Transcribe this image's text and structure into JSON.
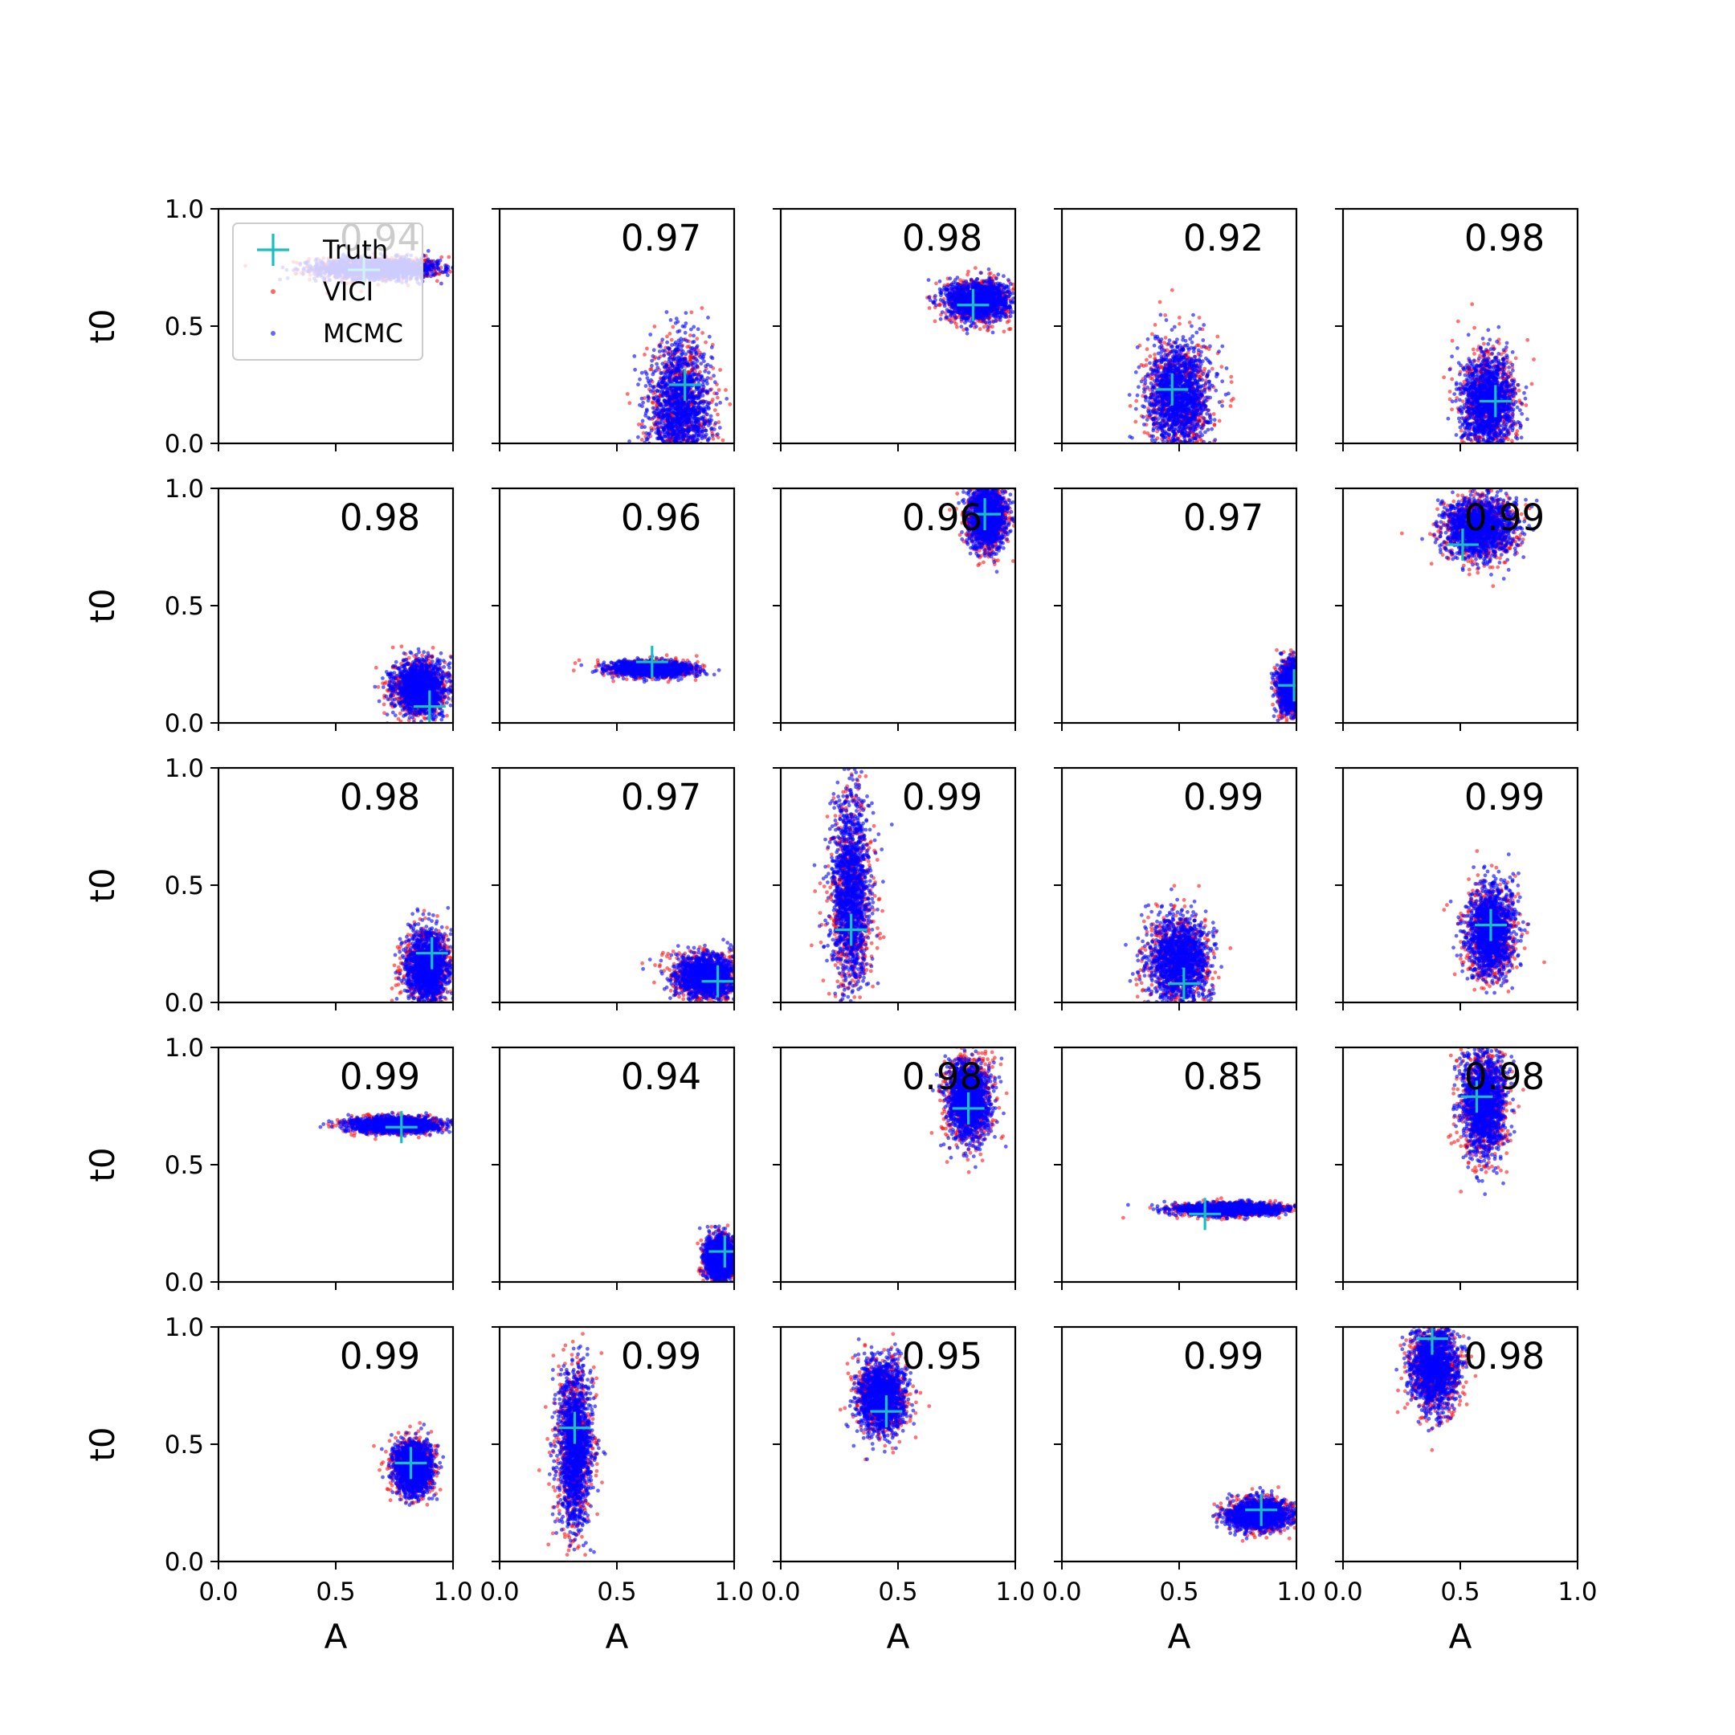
{
  "figure": {
    "xlabel": "A",
    "ylabel": "t0",
    "xticks": [
      "0.0",
      "0.5",
      "1.0"
    ],
    "yticks": [
      "0.0",
      "0.5",
      "1.0"
    ],
    "xlim": [
      0,
      1
    ],
    "ylim": [
      0,
      1
    ]
  },
  "legend": {
    "placement": "top-left of first panel",
    "entries": [
      {
        "label": "Truth",
        "marker": "plus",
        "color": "#17bfbf"
      },
      {
        "label": "VICI",
        "marker": "dot",
        "color": "#ff0000"
      },
      {
        "label": "MCMC",
        "marker": "dot",
        "color": "#0000ff"
      }
    ]
  },
  "colors": {
    "truth": "#17bfbf",
    "vici": "#ff0000",
    "mcmc": "#0000ff"
  },
  "chart_data": {
    "type": "scatter",
    "grid": false,
    "rows": 5,
    "cols": 5,
    "panels": [
      {
        "overlap": "0.94",
        "truth": [
          0.62,
          0.74
        ],
        "vici": {
          "cx": 0.68,
          "cy": 0.745,
          "sx": 0.14,
          "sy": 0.025
        },
        "mcmc": {
          "cx": 0.68,
          "cy": 0.745,
          "sx": 0.13,
          "sy": 0.022
        }
      },
      {
        "overlap": "0.97",
        "truth": [
          0.79,
          0.25
        ],
        "vici": {
          "cx": 0.77,
          "cy": 0.14,
          "sx": 0.07,
          "sy": 0.15
        },
        "mcmc": {
          "cx": 0.77,
          "cy": 0.14,
          "sx": 0.065,
          "sy": 0.14
        }
      },
      {
        "overlap": "0.98",
        "truth": [
          0.82,
          0.59
        ],
        "vici": {
          "cx": 0.84,
          "cy": 0.61,
          "sx": 0.07,
          "sy": 0.045
        },
        "mcmc": {
          "cx": 0.84,
          "cy": 0.61,
          "sx": 0.065,
          "sy": 0.04
        }
      },
      {
        "overlap": "0.92",
        "truth": [
          0.47,
          0.23
        ],
        "vici": {
          "cx": 0.5,
          "cy": 0.2,
          "sx": 0.07,
          "sy": 0.12
        },
        "mcmc": {
          "cx": 0.5,
          "cy": 0.2,
          "sx": 0.065,
          "sy": 0.11
        }
      },
      {
        "overlap": "0.98",
        "truth": [
          0.65,
          0.18
        ],
        "vici": {
          "cx": 0.62,
          "cy": 0.17,
          "sx": 0.06,
          "sy": 0.11
        },
        "mcmc": {
          "cx": 0.62,
          "cy": 0.17,
          "sx": 0.055,
          "sy": 0.1
        }
      },
      {
        "overlap": "0.98",
        "truth": [
          0.9,
          0.07
        ],
        "vici": {
          "cx": 0.86,
          "cy": 0.15,
          "sx": 0.06,
          "sy": 0.06
        },
        "mcmc": {
          "cx": 0.86,
          "cy": 0.15,
          "sx": 0.055,
          "sy": 0.055
        }
      },
      {
        "overlap": "0.96",
        "truth": [
          0.65,
          0.26
        ],
        "vici": {
          "cx": 0.65,
          "cy": 0.23,
          "sx": 0.09,
          "sy": 0.018
        },
        "mcmc": {
          "cx": 0.65,
          "cy": 0.23,
          "sx": 0.085,
          "sy": 0.016
        }
      },
      {
        "overlap": "0.96",
        "truth": [
          0.87,
          0.89
        ],
        "vici": {
          "cx": 0.88,
          "cy": 0.88,
          "sx": 0.045,
          "sy": 0.07
        },
        "mcmc": {
          "cx": 0.88,
          "cy": 0.88,
          "sx": 0.04,
          "sy": 0.065
        }
      },
      {
        "overlap": "0.97",
        "truth": [
          0.99,
          0.16
        ],
        "vici": {
          "cx": 0.98,
          "cy": 0.15,
          "sx": 0.03,
          "sy": 0.06
        },
        "mcmc": {
          "cx": 0.98,
          "cy": 0.15,
          "sx": 0.028,
          "sy": 0.055
        }
      },
      {
        "overlap": "0.99",
        "truth": [
          0.51,
          0.76
        ],
        "vici": {
          "cx": 0.58,
          "cy": 0.83,
          "sx": 0.08,
          "sy": 0.07
        },
        "mcmc": {
          "cx": 0.58,
          "cy": 0.83,
          "sx": 0.075,
          "sy": 0.065
        }
      },
      {
        "overlap": "0.98",
        "truth": [
          0.91,
          0.21
        ],
        "vici": {
          "cx": 0.89,
          "cy": 0.15,
          "sx": 0.05,
          "sy": 0.08
        },
        "mcmc": {
          "cx": 0.89,
          "cy": 0.15,
          "sx": 0.045,
          "sy": 0.075
        }
      },
      {
        "overlap": "0.97",
        "truth": [
          0.93,
          0.09
        ],
        "vici": {
          "cx": 0.88,
          "cy": 0.11,
          "sx": 0.07,
          "sy": 0.05
        },
        "mcmc": {
          "cx": 0.88,
          "cy": 0.11,
          "sx": 0.065,
          "sy": 0.045
        }
      },
      {
        "overlap": "0.99",
        "truth": [
          0.3,
          0.31
        ],
        "vici": {
          "cx": 0.3,
          "cy": 0.45,
          "sx": 0.045,
          "sy": 0.22
        },
        "mcmc": {
          "cx": 0.3,
          "cy": 0.45,
          "sx": 0.04,
          "sy": 0.2
        }
      },
      {
        "overlap": "0.99",
        "truth": [
          0.52,
          0.08
        ],
        "vici": {
          "cx": 0.5,
          "cy": 0.18,
          "sx": 0.07,
          "sy": 0.1
        },
        "mcmc": {
          "cx": 0.5,
          "cy": 0.18,
          "sx": 0.065,
          "sy": 0.095
        }
      },
      {
        "overlap": "0.99",
        "truth": [
          0.63,
          0.33
        ],
        "vici": {
          "cx": 0.63,
          "cy": 0.3,
          "sx": 0.055,
          "sy": 0.1
        },
        "mcmc": {
          "cx": 0.63,
          "cy": 0.3,
          "sx": 0.05,
          "sy": 0.095
        }
      },
      {
        "overlap": "0.99",
        "truth": [
          0.78,
          0.66
        ],
        "vici": {
          "cx": 0.75,
          "cy": 0.67,
          "sx": 0.1,
          "sy": 0.018
        },
        "mcmc": {
          "cx": 0.75,
          "cy": 0.67,
          "sx": 0.095,
          "sy": 0.016
        }
      },
      {
        "overlap": "0.94",
        "truth": [
          0.96,
          0.13
        ],
        "vici": {
          "cx": 0.94,
          "cy": 0.1,
          "sx": 0.035,
          "sy": 0.05
        },
        "mcmc": {
          "cx": 0.94,
          "cy": 0.1,
          "sx": 0.032,
          "sy": 0.045
        }
      },
      {
        "overlap": "0.98",
        "truth": [
          0.8,
          0.74
        ],
        "vici": {
          "cx": 0.8,
          "cy": 0.77,
          "sx": 0.05,
          "sy": 0.09
        },
        "mcmc": {
          "cx": 0.8,
          "cy": 0.77,
          "sx": 0.045,
          "sy": 0.085
        }
      },
      {
        "overlap": "0.85",
        "truth": [
          0.61,
          0.29
        ],
        "vici": {
          "cx": 0.72,
          "cy": 0.31,
          "sx": 0.12,
          "sy": 0.015
        },
        "mcmc": {
          "cx": 0.72,
          "cy": 0.31,
          "sx": 0.115,
          "sy": 0.013
        }
      },
      {
        "overlap": "0.98",
        "truth": [
          0.57,
          0.79
        ],
        "vici": {
          "cx": 0.6,
          "cy": 0.76,
          "sx": 0.05,
          "sy": 0.12
        },
        "mcmc": {
          "cx": 0.6,
          "cy": 0.76,
          "sx": 0.045,
          "sy": 0.115
        }
      },
      {
        "overlap": "0.99",
        "truth": [
          0.82,
          0.42
        ],
        "vici": {
          "cx": 0.83,
          "cy": 0.4,
          "sx": 0.045,
          "sy": 0.06
        },
        "mcmc": {
          "cx": 0.83,
          "cy": 0.4,
          "sx": 0.04,
          "sy": 0.055
        }
      },
      {
        "overlap": "0.99",
        "truth": [
          0.32,
          0.57
        ],
        "vici": {
          "cx": 0.32,
          "cy": 0.48,
          "sx": 0.04,
          "sy": 0.17
        },
        "mcmc": {
          "cx": 0.32,
          "cy": 0.48,
          "sx": 0.036,
          "sy": 0.16
        }
      },
      {
        "overlap": "0.95",
        "truth": [
          0.45,
          0.64
        ],
        "vici": {
          "cx": 0.43,
          "cy": 0.7,
          "sx": 0.055,
          "sy": 0.08
        },
        "mcmc": {
          "cx": 0.43,
          "cy": 0.7,
          "sx": 0.05,
          "sy": 0.075
        }
      },
      {
        "overlap": "0.99",
        "truth": [
          0.85,
          0.22
        ],
        "vici": {
          "cx": 0.84,
          "cy": 0.2,
          "sx": 0.07,
          "sy": 0.035
        },
        "mcmc": {
          "cx": 0.84,
          "cy": 0.2,
          "sx": 0.065,
          "sy": 0.032
        }
      },
      {
        "overlap": "0.98",
        "truth": [
          0.38,
          0.95
        ],
        "vici": {
          "cx": 0.39,
          "cy": 0.83,
          "sx": 0.055,
          "sy": 0.1
        },
        "mcmc": {
          "cx": 0.39,
          "cy": 0.83,
          "sx": 0.05,
          "sy": 0.095
        }
      }
    ]
  }
}
